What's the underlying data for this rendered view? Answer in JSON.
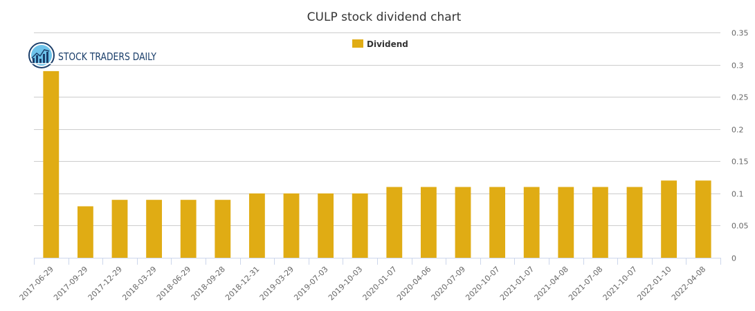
{
  "logo": {
    "text": "STOCK TRADERS DAILY",
    "icon": "bar-chart-globe-icon",
    "color": "#1b3f6b"
  },
  "chart_data": {
    "type": "bar",
    "title": "CULP stock dividend chart",
    "xlabel": "",
    "ylabel": "",
    "categories": [
      "2017-06-29",
      "2017-09-29",
      "2017-12-29",
      "2018-03-29",
      "2018-06-29",
      "2018-09-28",
      "2018-12-31",
      "2019-03-29",
      "2019-07-03",
      "2019-10-03",
      "2020-01-07",
      "2020-04-06",
      "2020-07-09",
      "2020-10-07",
      "2021-01-07",
      "2021-04-08",
      "2021-07-08",
      "2021-10-07",
      "2022-01-10",
      "2022-04-08"
    ],
    "series": [
      {
        "name": "Dividend",
        "color": "#e0ac14",
        "values": [
          0.29,
          0.08,
          0.09,
          0.09,
          0.09,
          0.09,
          0.1,
          0.1,
          0.1,
          0.1,
          0.11,
          0.11,
          0.11,
          0.11,
          0.11,
          0.11,
          0.11,
          0.11,
          0.12,
          0.12
        ]
      }
    ],
    "ylim": [
      0,
      0.35
    ],
    "yticks": [
      "0",
      "0.05",
      "0.1",
      "0.15",
      "0.2",
      "0.25",
      "0.3",
      "0.35"
    ],
    "y_axis_side": "right",
    "grid": true,
    "legend_position": "top-center"
  }
}
